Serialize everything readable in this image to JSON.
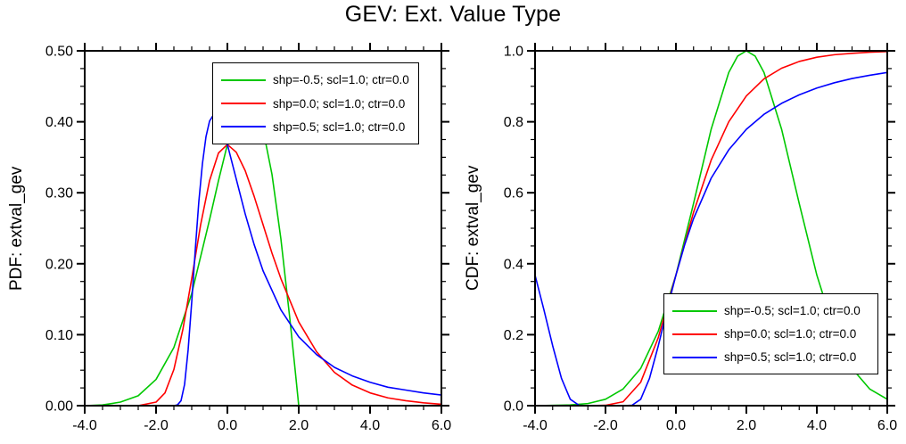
{
  "title": "GEV: Ext. Value Type",
  "colors": {
    "shape_neg": "#00c800",
    "shape_zero": "#ff0000",
    "shape_pos": "#0000ff",
    "axis": "#000000"
  },
  "chart_data": [
    {
      "type": "line",
      "title": "",
      "xlabel": "",
      "ylabel": "PDF: extval_gev",
      "xlim": [
        -4.0,
        6.0
      ],
      "ylim": [
        0.0,
        0.5
      ],
      "grid": false,
      "legend_position": "top-center",
      "xtick_values": [
        -4,
        -2,
        0,
        2,
        4,
        6
      ],
      "xtick_labels": [
        "-4.0",
        "-2.0",
        "0.0",
        "2.0",
        "4.0",
        "6.0"
      ],
      "ytick_values": [
        0.0,
        0.1,
        0.2,
        0.3,
        0.4,
        0.5
      ],
      "ytick_labels": [
        "0.00",
        "0.10",
        "0.20",
        "0.30",
        "0.40",
        "0.50"
      ],
      "x_minor_step": 0.5,
      "y_minor_step": 0.025,
      "series": [
        {
          "name": "shp=-0.5; scl=1.0; ctr=0.0",
          "color": "#00c800",
          "x": [
            -4,
            -3.5,
            -3,
            -2.5,
            -2,
            -1.5,
            -1,
            -0.5,
            -0.25,
            0,
            0.25,
            0.5,
            0.586,
            0.75,
            1,
            1.25,
            1.5,
            1.75,
            1.9,
            2
          ],
          "y": [
            0.0,
            0.001,
            0.005,
            0.014,
            0.037,
            0.082,
            0.158,
            0.262,
            0.317,
            0.368,
            0.407,
            0.427,
            0.429,
            0.423,
            0.389,
            0.326,
            0.235,
            0.123,
            0.05,
            0.0
          ]
        },
        {
          "name": "shp=0.0; scl=1.0; ctr=0.0",
          "color": "#ff0000",
          "x": [
            -4,
            -3,
            -2.5,
            -2,
            -1.75,
            -1.5,
            -1.25,
            -1,
            -0.75,
            -0.5,
            -0.25,
            0,
            0.25,
            0.5,
            0.75,
            1,
            1.25,
            1.5,
            2,
            2.5,
            3,
            3.5,
            4,
            4.5,
            5,
            5.5,
            6
          ],
          "y": [
            0.0,
            0.0,
            0.0,
            0.005,
            0.018,
            0.051,
            0.107,
            0.179,
            0.255,
            0.317,
            0.356,
            0.368,
            0.357,
            0.331,
            0.295,
            0.255,
            0.215,
            0.179,
            0.118,
            0.076,
            0.047,
            0.029,
            0.018,
            0.011,
            0.007,
            0.004,
            0.002
          ]
        },
        {
          "name": "shp=0.5; scl=1.0; ctr=0.0",
          "color": "#0000ff",
          "x": [
            -4,
            -2,
            -1.6,
            -1.5,
            -1.4,
            -1.3,
            -1.2,
            -1.1,
            -1,
            -0.9,
            -0.8,
            -0.7,
            -0.6,
            -0.5,
            -0.4,
            -0.3,
            -0.2,
            -0.1,
            0,
            0.25,
            0.5,
            0.75,
            1,
            1.5,
            2,
            2.5,
            3,
            3.5,
            4,
            4.5,
            5,
            5.5,
            6
          ],
          "y": [
            0.0,
            0.0,
            0.0,
            0.0,
            0.001,
            0.007,
            0.03,
            0.079,
            0.146,
            0.22,
            0.288,
            0.341,
            0.379,
            0.401,
            0.409,
            0.408,
            0.399,
            0.385,
            0.368,
            0.319,
            0.27,
            0.227,
            0.19,
            0.135,
            0.097,
            0.072,
            0.054,
            0.042,
            0.033,
            0.026,
            0.022,
            0.018,
            0.015
          ]
        }
      ]
    },
    {
      "type": "line",
      "title": "",
      "xlabel": "",
      "ylabel": "CDF: extval_gev",
      "xlim": [
        -4.0,
        6.0
      ],
      "ylim": [
        0.0,
        1.0
      ],
      "grid": false,
      "legend_position": "bottom-right",
      "xtick_values": [
        -4,
        -2,
        0,
        2,
        4,
        6
      ],
      "xtick_labels": [
        "-4.0",
        "-2.0",
        "0.0",
        "2.0",
        "4.0",
        "6.0"
      ],
      "ytick_values": [
        0.0,
        0.2,
        0.4,
        0.6,
        0.8,
        1.0
      ],
      "ytick_labels": [
        "0.0",
        "0.2",
        "0.4",
        "0.6",
        "0.8",
        "1.0"
      ],
      "x_minor_step": 0.5,
      "y_minor_step": 0.05,
      "series": [
        {
          "name": "shp=-0.5; scl=1.0; ctr=0.0",
          "color": "#00c800",
          "x": [
            -4,
            -3,
            -2.5,
            -2,
            -1.5,
            -1,
            -0.5,
            0,
            0.5,
            1,
            1.5,
            1.75,
            2,
            2.25,
            2.5,
            3,
            3.5,
            4,
            4.5,
            5,
            5.5,
            6
          ],
          "y": [
            0.0,
            0.002,
            0.006,
            0.018,
            0.047,
            0.105,
            0.21,
            0.368,
            0.57,
            0.779,
            0.939,
            0.985,
            1.0,
            0.985,
            0.939,
            0.779,
            0.57,
            0.368,
            0.21,
            0.105,
            0.047,
            0.018
          ]
        },
        {
          "name": "shp=0.0; scl=1.0; ctr=0.0",
          "color": "#ff0000",
          "x": [
            -4,
            -3,
            -2.5,
            -2,
            -1.5,
            -1,
            -0.5,
            0,
            0.5,
            1,
            1.5,
            2,
            2.5,
            3,
            3.5,
            4,
            4.5,
            5,
            5.5,
            6
          ],
          "y": [
            0.0,
            0.0,
            0.0,
            0.001,
            0.011,
            0.066,
            0.192,
            0.368,
            0.545,
            0.692,
            0.8,
            0.873,
            0.921,
            0.951,
            0.97,
            0.982,
            0.989,
            0.993,
            0.996,
            0.998
          ]
        },
        {
          "name": "shp=0.5; scl=1.0; ctr=0.0",
          "color": "#0000ff",
          "x": [
            -4,
            -3.75,
            -3.5,
            -3.25,
            -3,
            -2.75,
            -2.5,
            -2,
            -1.5,
            -1.25,
            -1,
            -0.75,
            -0.5,
            -0.25,
            0,
            0.25,
            0.5,
            1,
            1.5,
            2,
            2.5,
            3,
            3.5,
            4,
            4.5,
            5,
            5.5,
            6
          ],
          "y": [
            0.368,
            0.271,
            0.169,
            0.077,
            0.018,
            0.001,
            0.0,
            0.0,
            0.0,
            0.001,
            0.018,
            0.077,
            0.169,
            0.271,
            0.368,
            0.454,
            0.527,
            0.641,
            0.721,
            0.779,
            0.821,
            0.852,
            0.876,
            0.895,
            0.91,
            0.922,
            0.931,
            0.939
          ]
        }
      ]
    }
  ]
}
